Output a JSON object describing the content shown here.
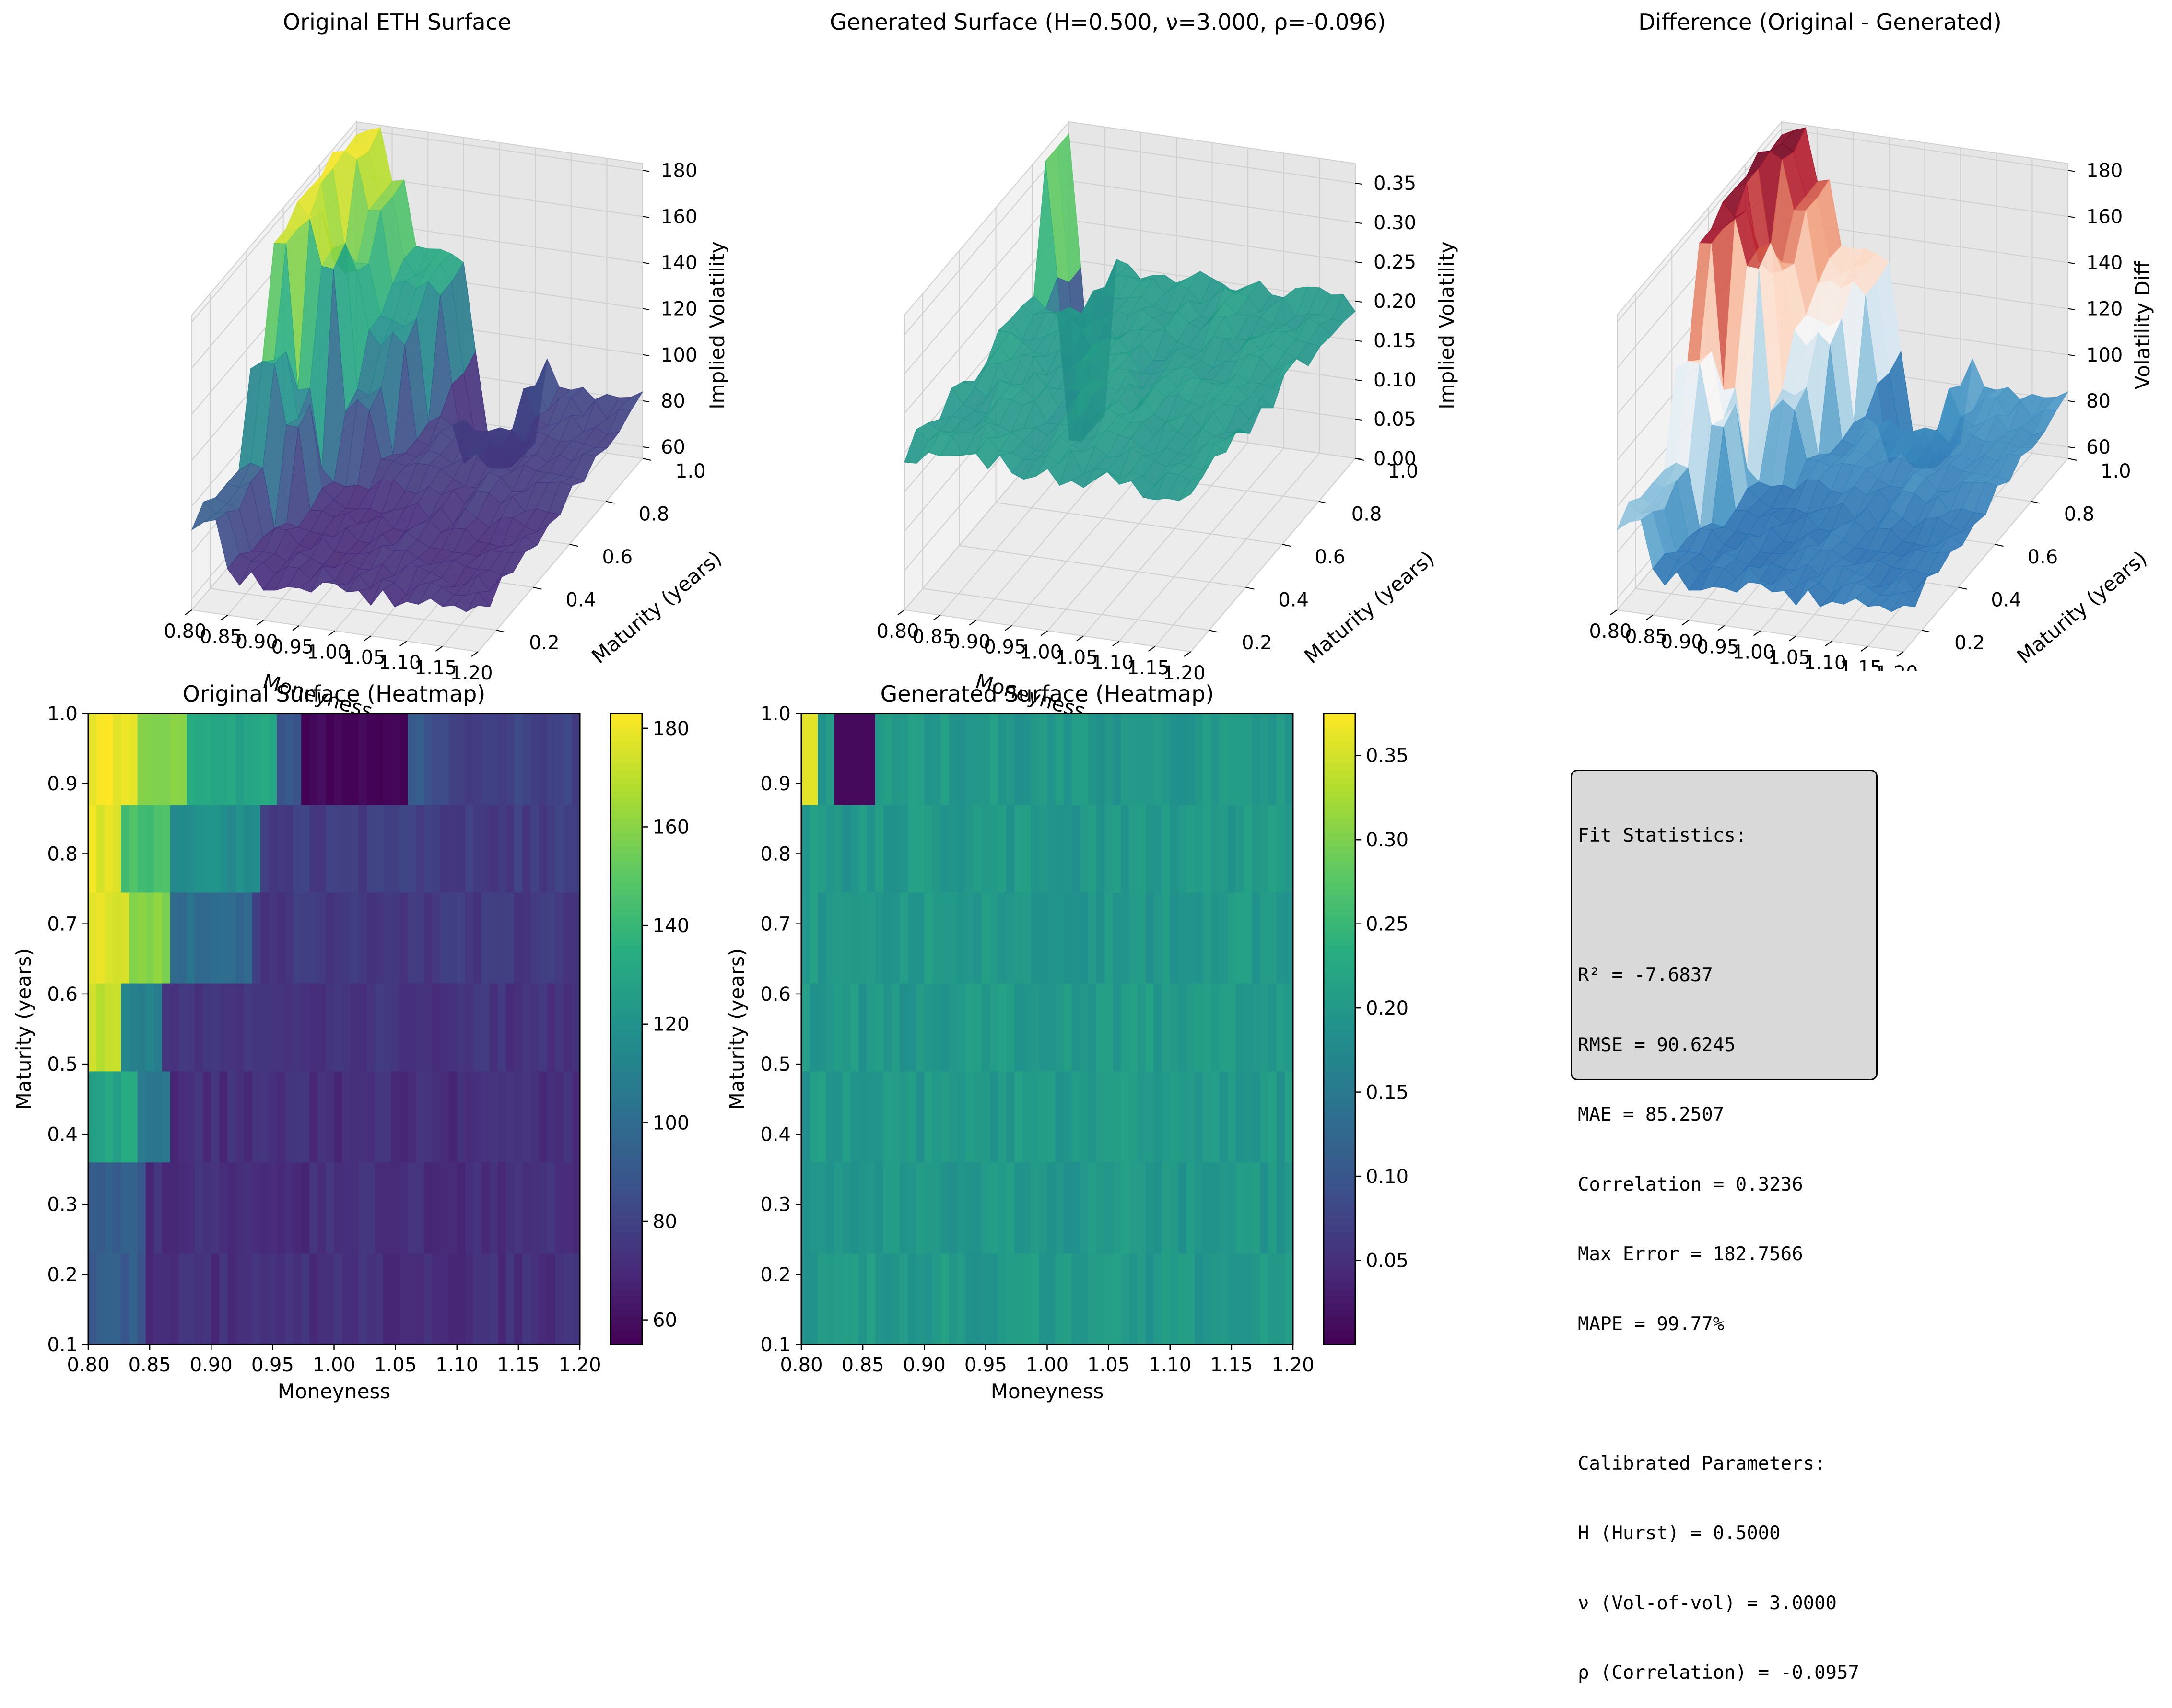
{
  "colors": {
    "viridis": [
      "#440154",
      "#472d7b",
      "#3b528b",
      "#2c728e",
      "#21918c",
      "#28ae80",
      "#5ec962",
      "#addc30",
      "#fde725"
    ],
    "rdbu": [
      "#67001f",
      "#b2182b",
      "#d6604d",
      "#f4a582",
      "#fddbc7",
      "#f7f7f7",
      "#d1e5f0",
      "#92c5de",
      "#4393c3",
      "#2166ac",
      "#053061"
    ],
    "axis_pane": "#f2f2f2",
    "grid": "#cfcfcf"
  },
  "chart_data": [
    {
      "type": "surface",
      "title": "Original ETH Surface",
      "xlabel": "Moneyness",
      "ylabel": "Maturity (years)",
      "zlabel": "Implied Volatility",
      "xticks": [
        "0.80",
        "0.85",
        "0.90",
        "0.95",
        "1.00",
        "1.05",
        "1.10",
        "1.15",
        "1.20"
      ],
      "yticks": [
        "0.2",
        "0.4",
        "0.6",
        "0.8",
        "1.0"
      ],
      "zticks": [
        "60",
        "80",
        "100",
        "120",
        "140",
        "160",
        "180"
      ],
      "xlim": [
        0.8,
        1.2
      ],
      "ylim": [
        0.1,
        1.0
      ],
      "zlim": [
        55,
        183
      ],
      "colormap": "viridis"
    },
    {
      "type": "surface",
      "title": "Generated Surface (H=0.500, ν=3.000, ρ=-0.096)",
      "xlabel": "Moneyness",
      "ylabel": "Maturity (years)",
      "zlabel": "Implied Volatility",
      "xticks": [
        "0.80",
        "0.85",
        "0.90",
        "0.95",
        "1.00",
        "1.05",
        "1.10",
        "1.15",
        "1.20"
      ],
      "yticks": [
        "0.2",
        "0.4",
        "0.6",
        "0.8",
        "1.0"
      ],
      "zticks": [
        "0.00",
        "0.05",
        "0.10",
        "0.15",
        "0.20",
        "0.25",
        "0.30",
        "0.35"
      ],
      "xlim": [
        0.8,
        1.2
      ],
      "ylim": [
        0.1,
        1.0
      ],
      "zlim": [
        0.0,
        0.375
      ],
      "colormap": "viridis"
    },
    {
      "type": "surface",
      "title": "Difference (Original - Generated)",
      "xlabel": "Moneyness",
      "ylabel": "Maturity (years)",
      "zlabel": "Volatility Diff",
      "xticks": [
        "0.80",
        "0.85",
        "0.90",
        "0.95",
        "1.00",
        "1.05",
        "1.10",
        "1.15",
        "1.20"
      ],
      "yticks": [
        "0.2",
        "0.4",
        "0.6",
        "0.8",
        "1.0"
      ],
      "zticks": [
        "60",
        "80",
        "100",
        "120",
        "140",
        "160",
        "180"
      ],
      "xlim": [
        0.8,
        1.2
      ],
      "ylim": [
        0.1,
        1.0
      ],
      "zlim": [
        55,
        183
      ],
      "colormap": "RdBu"
    },
    {
      "type": "heatmap",
      "title": "Original Surface (Heatmap)",
      "xlabel": "Moneyness",
      "ylabel": "Maturity (years)",
      "xticks": [
        "0.80",
        "0.85",
        "0.90",
        "0.95",
        "1.00",
        "1.05",
        "1.10",
        "1.15",
        "1.20"
      ],
      "yticks": [
        "0.1",
        "0.2",
        "0.3",
        "0.4",
        "0.5",
        "0.6",
        "0.7",
        "0.8",
        "0.9",
        "1.0"
      ],
      "xlim": [
        0.8,
        1.2
      ],
      "ylim": [
        0.1,
        1.0
      ],
      "colorbar_ticks": [
        "60",
        "80",
        "100",
        "120",
        "140",
        "160",
        "180"
      ],
      "colorbar_range": [
        55,
        183
      ],
      "colormap": "viridis",
      "maturity_bands": [
        0.1,
        0.23,
        0.36,
        0.49,
        0.615,
        0.745,
        0.87,
        1.0
      ]
    },
    {
      "type": "heatmap",
      "title": "Generated Surface (Heatmap)",
      "xlabel": "Moneyness",
      "ylabel": "Maturity (years)",
      "xticks": [
        "0.80",
        "0.85",
        "0.90",
        "0.95",
        "1.00",
        "1.05",
        "1.10",
        "1.15",
        "1.20"
      ],
      "yticks": [
        "0.1",
        "0.2",
        "0.3",
        "0.4",
        "0.5",
        "0.6",
        "0.7",
        "0.8",
        "0.9",
        "1.0"
      ],
      "xlim": [
        0.8,
        1.2
      ],
      "ylim": [
        0.1,
        1.0
      ],
      "colorbar_ticks": [
        "0.05",
        "0.10",
        "0.15",
        "0.20",
        "0.25",
        "0.30",
        "0.35"
      ],
      "colorbar_range": [
        0.0,
        0.375
      ],
      "colormap": "viridis",
      "maturity_bands": [
        0.1,
        0.23,
        0.36,
        0.49,
        0.615,
        0.745,
        0.87,
        1.0
      ]
    }
  ],
  "stats": {
    "lines": [
      "Fit Statistics:",
      "",
      "R² = -7.6837",
      "RMSE = 90.6245",
      "MAE = 85.2507",
      "Correlation = 0.3236",
      "Max Error = 182.7566",
      "MAPE = 99.77%",
      "",
      "Calibrated Parameters:",
      "H (Hurst) = 0.5000",
      "ν (Vol-of-vol) = 3.0000",
      "ρ (Correlation) = -0.0957"
    ]
  }
}
